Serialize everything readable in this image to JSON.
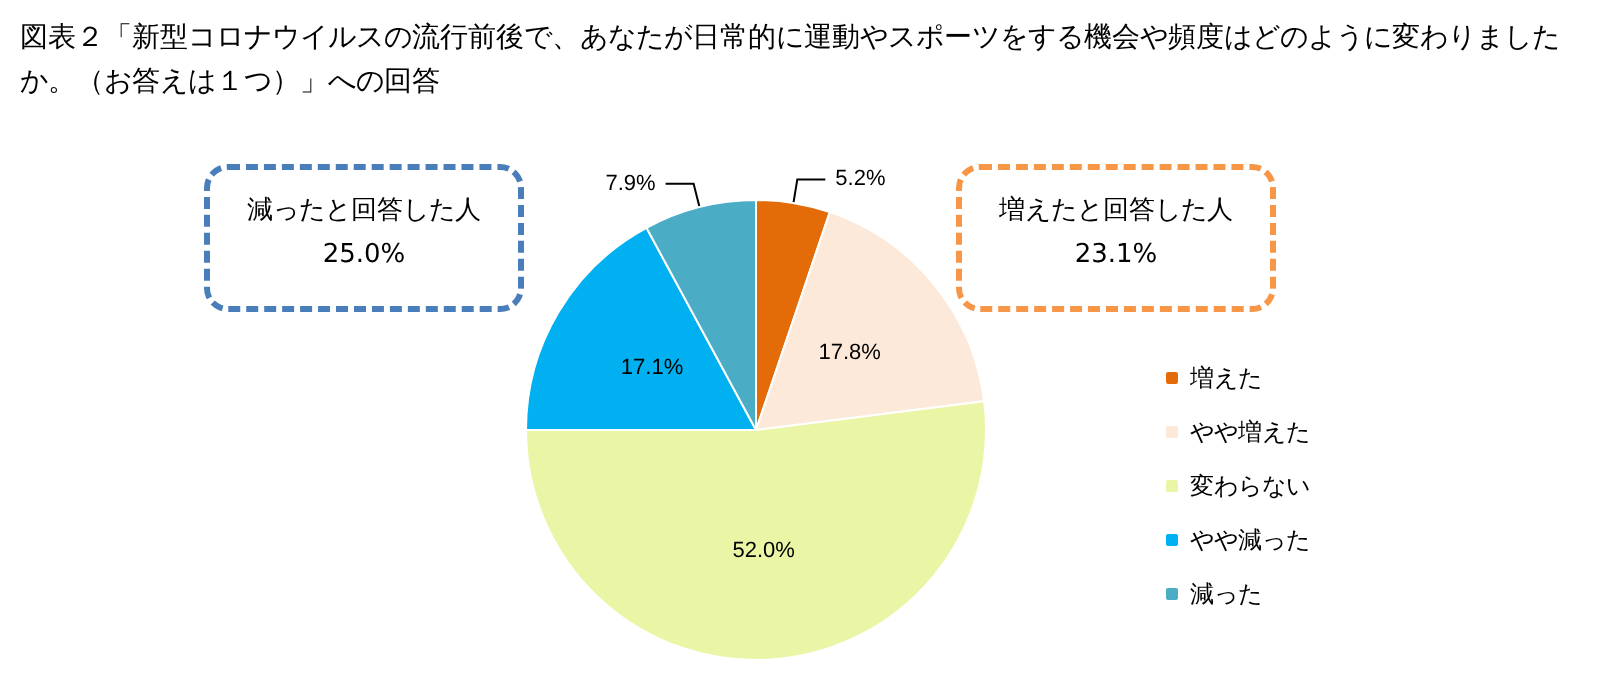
{
  "chart_data": {
    "type": "pie",
    "title": "図表２「新型コロナウイルスの流行前後で、あなたが日常的に運動やスポーツをする機会や頻度はどのように変わりましたか。（お答えは１つ）」への回答",
    "categories": [
      "増えた",
      "やや増えた",
      "変わらない",
      "やや減った",
      "減った"
    ],
    "values": [
      5.2,
      17.8,
      52.0,
      17.1,
      7.9
    ],
    "value_labels": [
      "5.2%",
      "17.8%",
      "52.0%",
      "17.1%",
      "7.9%"
    ],
    "colors": [
      "#e36c09",
      "#fde9d9",
      "#ebf5a6",
      "#00b0f0",
      "#4bacc6"
    ],
    "legend": "right",
    "annotations": [
      "減ったと回答した人",
      "25.0%",
      "増えたと回答した人",
      "23.1%"
    ]
  }
}
